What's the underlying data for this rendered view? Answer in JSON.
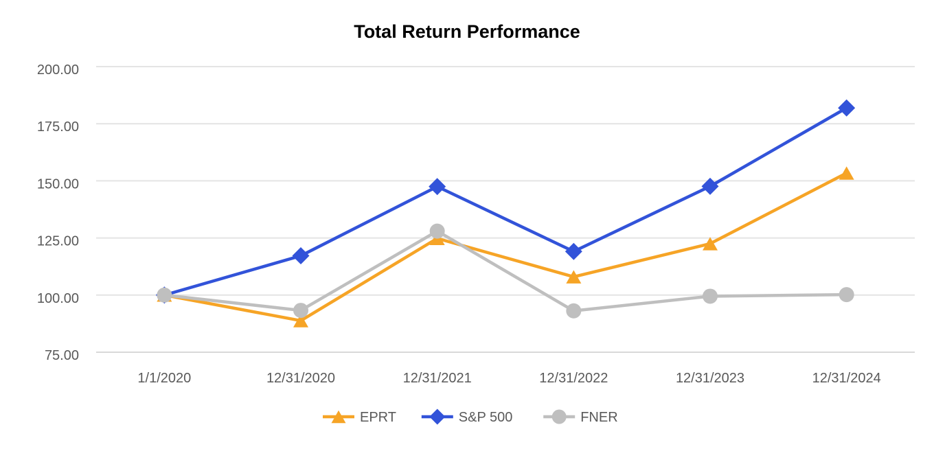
{
  "chart_data": {
    "type": "line",
    "title": "Total Return Performance",
    "categories": [
      "1/1/2020",
      "12/31/2020",
      "12/31/2021",
      "12/31/2022",
      "12/31/2023",
      "12/31/2024"
    ],
    "series": [
      {
        "name": "EPRT",
        "marker": "triangle",
        "color": "#F6A426",
        "values": [
          100,
          88.8,
          124.8,
          108.0,
          122.5,
          153.4
        ]
      },
      {
        "name": "S&P 500",
        "marker": "diamond",
        "color": "#3253D9",
        "values": [
          100,
          117.2,
          147.5,
          119.1,
          147.6,
          181.9
        ]
      },
      {
        "name": "FNER",
        "marker": "circle",
        "color": "#BFBFBF",
        "values": [
          100,
          93.3,
          128.0,
          93.1,
          99.5,
          100.2
        ]
      }
    ],
    "ylim": [
      75,
      200
    ],
    "ytick_step": 25,
    "ytick_labels": [
      "75.00",
      "100.00",
      "125.00",
      "150.00",
      "175.00",
      "200.00"
    ],
    "grid": "horizontal",
    "legend_position": "bottom",
    "legend_labels": [
      "EPRT",
      "S&P 500",
      "FNER"
    ],
    "colors": {
      "title_text": "#000000",
      "axis_text": "#595959",
      "gridline": "#E4E4E4",
      "bottom_gridline": "#D8D8D8",
      "background": "#FFFFFF"
    }
  }
}
